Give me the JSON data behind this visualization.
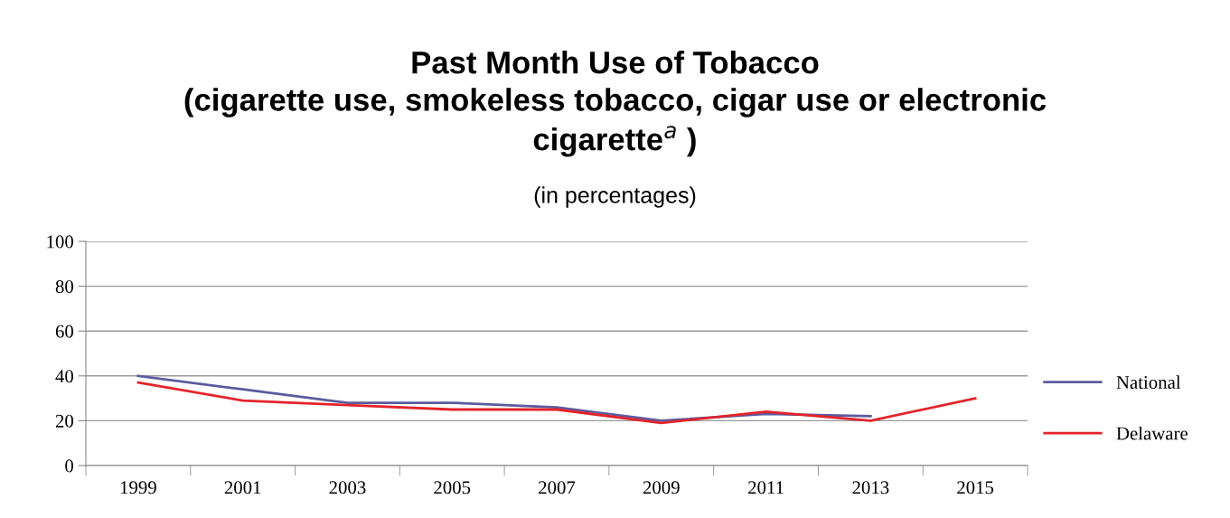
{
  "chart_data": {
    "type": "line",
    "title": "Past Month Use of Tobacco\n(cigarette use, smokeless tobacco, cigar use or electronic\ncigarette$^{a}$ )",
    "subtitle": "(in percentages)",
    "categories": [
      "1999",
      "2001",
      "2003",
      "2005",
      "2007",
      "2009",
      "2011",
      "2013",
      "2015"
    ],
    "series": [
      {
        "name": "National",
        "color": "#5b5b9e",
        "values": [
          40,
          34,
          28,
          28,
          26,
          20,
          23,
          22,
          null
        ]
      },
      {
        "name": "Delaware",
        "color": "#e3242b",
        "values": [
          37,
          29,
          27,
          25,
          25,
          19,
          24,
          20,
          30
        ]
      }
    ],
    "ylim": [
      0,
      100
    ],
    "yticks": [
      0,
      20,
      40,
      60,
      80,
      100
    ],
    "grid": "y",
    "legend": "right",
    "marker": "none",
    "line_style": "solid"
  }
}
